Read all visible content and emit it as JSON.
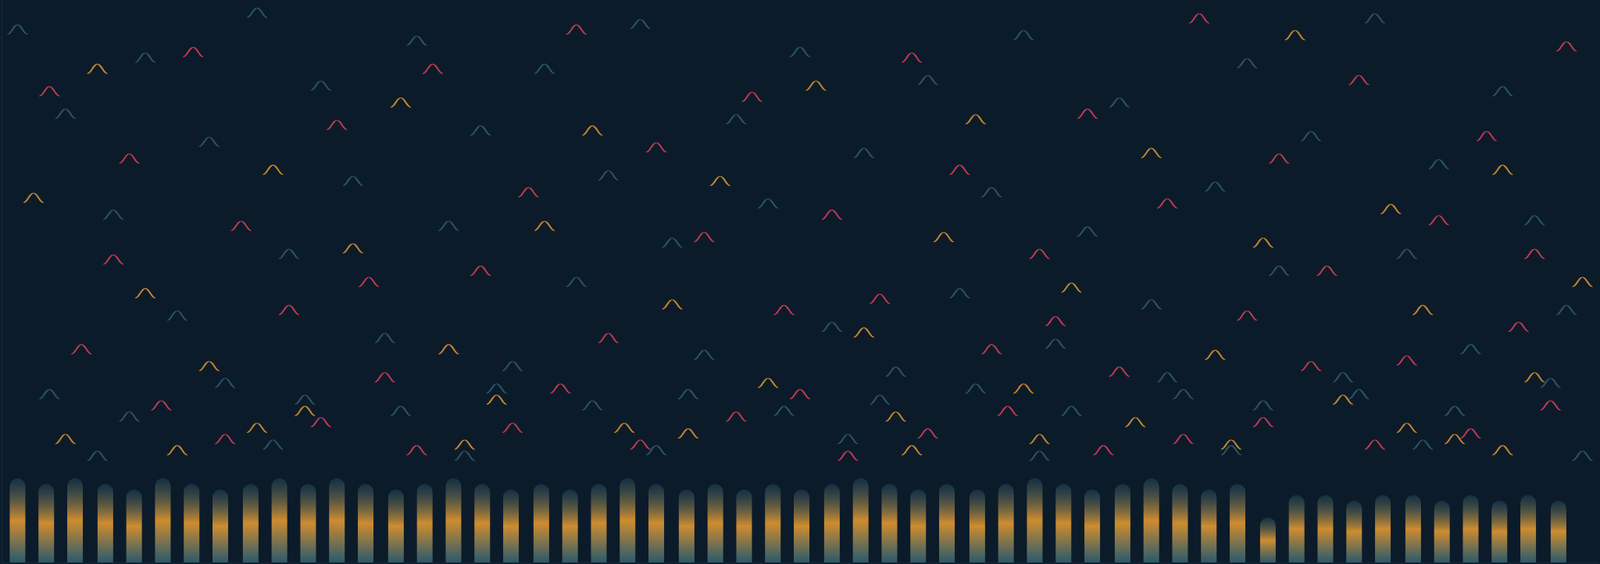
{
  "chart_data": {
    "type": "scatter",
    "tick_labels": false,
    "grid": false,
    "xlim": [
      0,
      100
    ],
    "ylim": [
      0,
      100
    ],
    "series": [
      {
        "type": "bar",
        "color": "#f0a030",
        "values": [
          [
            1.0,
            15
          ],
          [
            2.8,
            14
          ],
          [
            4.6,
            15
          ],
          [
            6.5,
            14
          ],
          [
            8.3,
            13
          ],
          [
            10.1,
            15
          ],
          [
            11.9,
            14
          ],
          [
            13.7,
            13
          ],
          [
            15.6,
            14
          ],
          [
            17.4,
            15
          ],
          [
            19.2,
            14
          ],
          [
            21.0,
            15
          ],
          [
            22.8,
            14
          ],
          [
            24.7,
            13
          ],
          [
            26.5,
            14
          ],
          [
            28.3,
            15
          ],
          [
            30.1,
            14
          ],
          [
            31.9,
            13
          ],
          [
            33.8,
            14
          ],
          [
            35.6,
            13
          ],
          [
            37.4,
            14
          ],
          [
            39.2,
            15
          ],
          [
            41.0,
            14
          ],
          [
            42.9,
            13
          ],
          [
            44.7,
            14
          ],
          [
            46.5,
            13
          ],
          [
            48.3,
            14
          ],
          [
            50.1,
            13
          ],
          [
            52.0,
            14
          ],
          [
            53.8,
            15
          ],
          [
            55.6,
            14
          ],
          [
            57.4,
            13
          ],
          [
            59.2,
            14
          ],
          [
            61.1,
            13
          ],
          [
            62.9,
            14
          ],
          [
            64.7,
            15
          ],
          [
            66.5,
            14
          ],
          [
            68.3,
            13
          ],
          [
            70.2,
            14
          ],
          [
            72.0,
            15
          ],
          [
            73.8,
            14
          ],
          [
            75.6,
            13
          ],
          [
            77.4,
            14
          ],
          [
            79.3,
            8
          ],
          [
            81.1,
            12
          ],
          [
            82.9,
            12
          ],
          [
            84.7,
            11
          ],
          [
            86.5,
            12
          ],
          [
            88.4,
            12
          ],
          [
            90.2,
            11
          ],
          [
            92.0,
            12
          ],
          [
            93.8,
            11
          ],
          [
            95.6,
            12
          ],
          [
            97.5,
            11
          ]
        ]
      },
      {
        "type": "scatter",
        "color": "#2f6478",
        "marker": "arc",
        "values": [
          [
            1,
            95
          ],
          [
            4,
            80
          ],
          [
            7,
            62
          ],
          [
            9,
            90
          ],
          [
            11,
            44
          ],
          [
            13,
            75
          ],
          [
            16,
            98
          ],
          [
            18,
            55
          ],
          [
            20,
            85
          ],
          [
            22,
            68
          ],
          [
            24,
            40
          ],
          [
            26,
            93
          ],
          [
            28,
            60
          ],
          [
            30,
            77
          ],
          [
            32,
            35
          ],
          [
            34,
            88
          ],
          [
            36,
            50
          ],
          [
            38,
            69
          ],
          [
            40,
            96
          ],
          [
            42,
            57
          ],
          [
            44,
            37
          ],
          [
            46,
            79
          ],
          [
            48,
            64
          ],
          [
            50,
            91
          ],
          [
            52,
            42
          ],
          [
            54,
            73
          ],
          [
            56,
            34
          ],
          [
            58,
            86
          ],
          [
            60,
            48
          ],
          [
            62,
            66
          ],
          [
            64,
            94
          ],
          [
            66,
            39
          ],
          [
            68,
            59
          ],
          [
            70,
            82
          ],
          [
            72,
            46
          ],
          [
            74,
            30
          ],
          [
            76,
            67
          ],
          [
            78,
            89
          ],
          [
            80,
            52
          ],
          [
            82,
            76
          ],
          [
            84,
            33
          ],
          [
            86,
            97
          ],
          [
            88,
            55
          ],
          [
            90,
            71
          ],
          [
            92,
            38
          ],
          [
            94,
            84
          ],
          [
            96,
            61
          ],
          [
            98,
            45
          ],
          [
            3,
            30
          ],
          [
            8,
            26
          ],
          [
            14,
            32
          ],
          [
            19,
            29
          ],
          [
            25,
            27
          ],
          [
            31,
            31
          ],
          [
            37,
            28
          ],
          [
            43,
            30
          ],
          [
            49,
            27
          ],
          [
            55,
            29
          ],
          [
            61,
            31
          ],
          [
            67,
            27
          ],
          [
            73,
            33
          ],
          [
            79,
            28
          ],
          [
            85,
            30
          ],
          [
            91,
            27
          ],
          [
            97,
            32
          ],
          [
            6,
            19
          ],
          [
            17,
            21
          ],
          [
            29,
            19
          ],
          [
            41,
            20
          ],
          [
            53,
            22
          ],
          [
            65,
            19
          ],
          [
            77,
            20
          ],
          [
            89,
            21
          ],
          [
            99,
            19
          ]
        ]
      },
      {
        "type": "scatter",
        "color": "#f0a030",
        "marker": "arc",
        "values": [
          [
            2,
            65
          ],
          [
            6,
            88
          ],
          [
            9,
            48
          ],
          [
            13,
            35
          ],
          [
            17,
            70
          ],
          [
            19,
            27
          ],
          [
            22,
            56
          ],
          [
            25,
            82
          ],
          [
            28,
            38
          ],
          [
            31,
            29
          ],
          [
            34,
            60
          ],
          [
            37,
            77
          ],
          [
            39,
            24
          ],
          [
            42,
            46
          ],
          [
            45,
            68
          ],
          [
            48,
            32
          ],
          [
            51,
            85
          ],
          [
            54,
            41
          ],
          [
            56,
            26
          ],
          [
            59,
            58
          ],
          [
            61,
            79
          ],
          [
            64,
            31
          ],
          [
            67,
            49
          ],
          [
            71,
            25
          ],
          [
            72,
            73
          ],
          [
            76,
            37
          ],
          [
            79,
            57
          ],
          [
            81,
            94
          ],
          [
            84,
            29
          ],
          [
            87,
            63
          ],
          [
            89,
            45
          ],
          [
            91,
            22
          ],
          [
            94,
            70
          ],
          [
            96,
            33
          ],
          [
            99,
            50
          ],
          [
            4,
            22
          ],
          [
            11,
            20
          ],
          [
            16,
            24
          ],
          [
            29,
            21
          ],
          [
            43,
            23
          ],
          [
            57,
            20
          ],
          [
            65,
            22
          ],
          [
            77,
            21
          ],
          [
            88,
            24
          ],
          [
            94,
            20
          ]
        ]
      },
      {
        "type": "scatter",
        "color": "#e8425a",
        "marker": "arc",
        "values": [
          [
            3,
            84
          ],
          [
            8,
            72
          ],
          [
            12,
            91
          ],
          [
            15,
            60
          ],
          [
            18,
            45
          ],
          [
            21,
            78
          ],
          [
            24,
            33
          ],
          [
            27,
            88
          ],
          [
            30,
            52
          ],
          [
            33,
            66
          ],
          [
            36,
            95
          ],
          [
            38,
            40
          ],
          [
            41,
            74
          ],
          [
            44,
            58
          ],
          [
            47,
            83
          ],
          [
            50,
            30
          ],
          [
            52,
            62
          ],
          [
            55,
            47
          ],
          [
            57,
            90
          ],
          [
            60,
            70
          ],
          [
            62,
            38
          ],
          [
            65,
            55
          ],
          [
            68,
            80
          ],
          [
            70,
            34
          ],
          [
            73,
            64
          ],
          [
            75,
            97
          ],
          [
            78,
            44
          ],
          [
            80,
            72
          ],
          [
            83,
            52
          ],
          [
            85,
            86
          ],
          [
            88,
            36
          ],
          [
            90,
            61
          ],
          [
            93,
            76
          ],
          [
            95,
            42
          ],
          [
            98,
            92
          ],
          [
            5,
            38
          ],
          [
            10,
            28
          ],
          [
            14,
            22
          ],
          [
            20,
            25
          ],
          [
            26,
            20
          ],
          [
            32,
            24
          ],
          [
            40,
            21
          ],
          [
            46,
            26
          ],
          [
            53,
            19
          ],
          [
            58,
            23
          ],
          [
            63,
            27
          ],
          [
            69,
            20
          ],
          [
            74,
            22
          ],
          [
            79,
            25
          ],
          [
            86,
            21
          ],
          [
            92,
            23
          ],
          [
            97,
            28
          ],
          [
            7,
            54
          ],
          [
            23,
            50
          ],
          [
            35,
            31
          ],
          [
            49,
            45
          ],
          [
            66,
            43
          ],
          [
            82,
            35
          ],
          [
            96,
            55
          ]
        ]
      }
    ]
  }
}
